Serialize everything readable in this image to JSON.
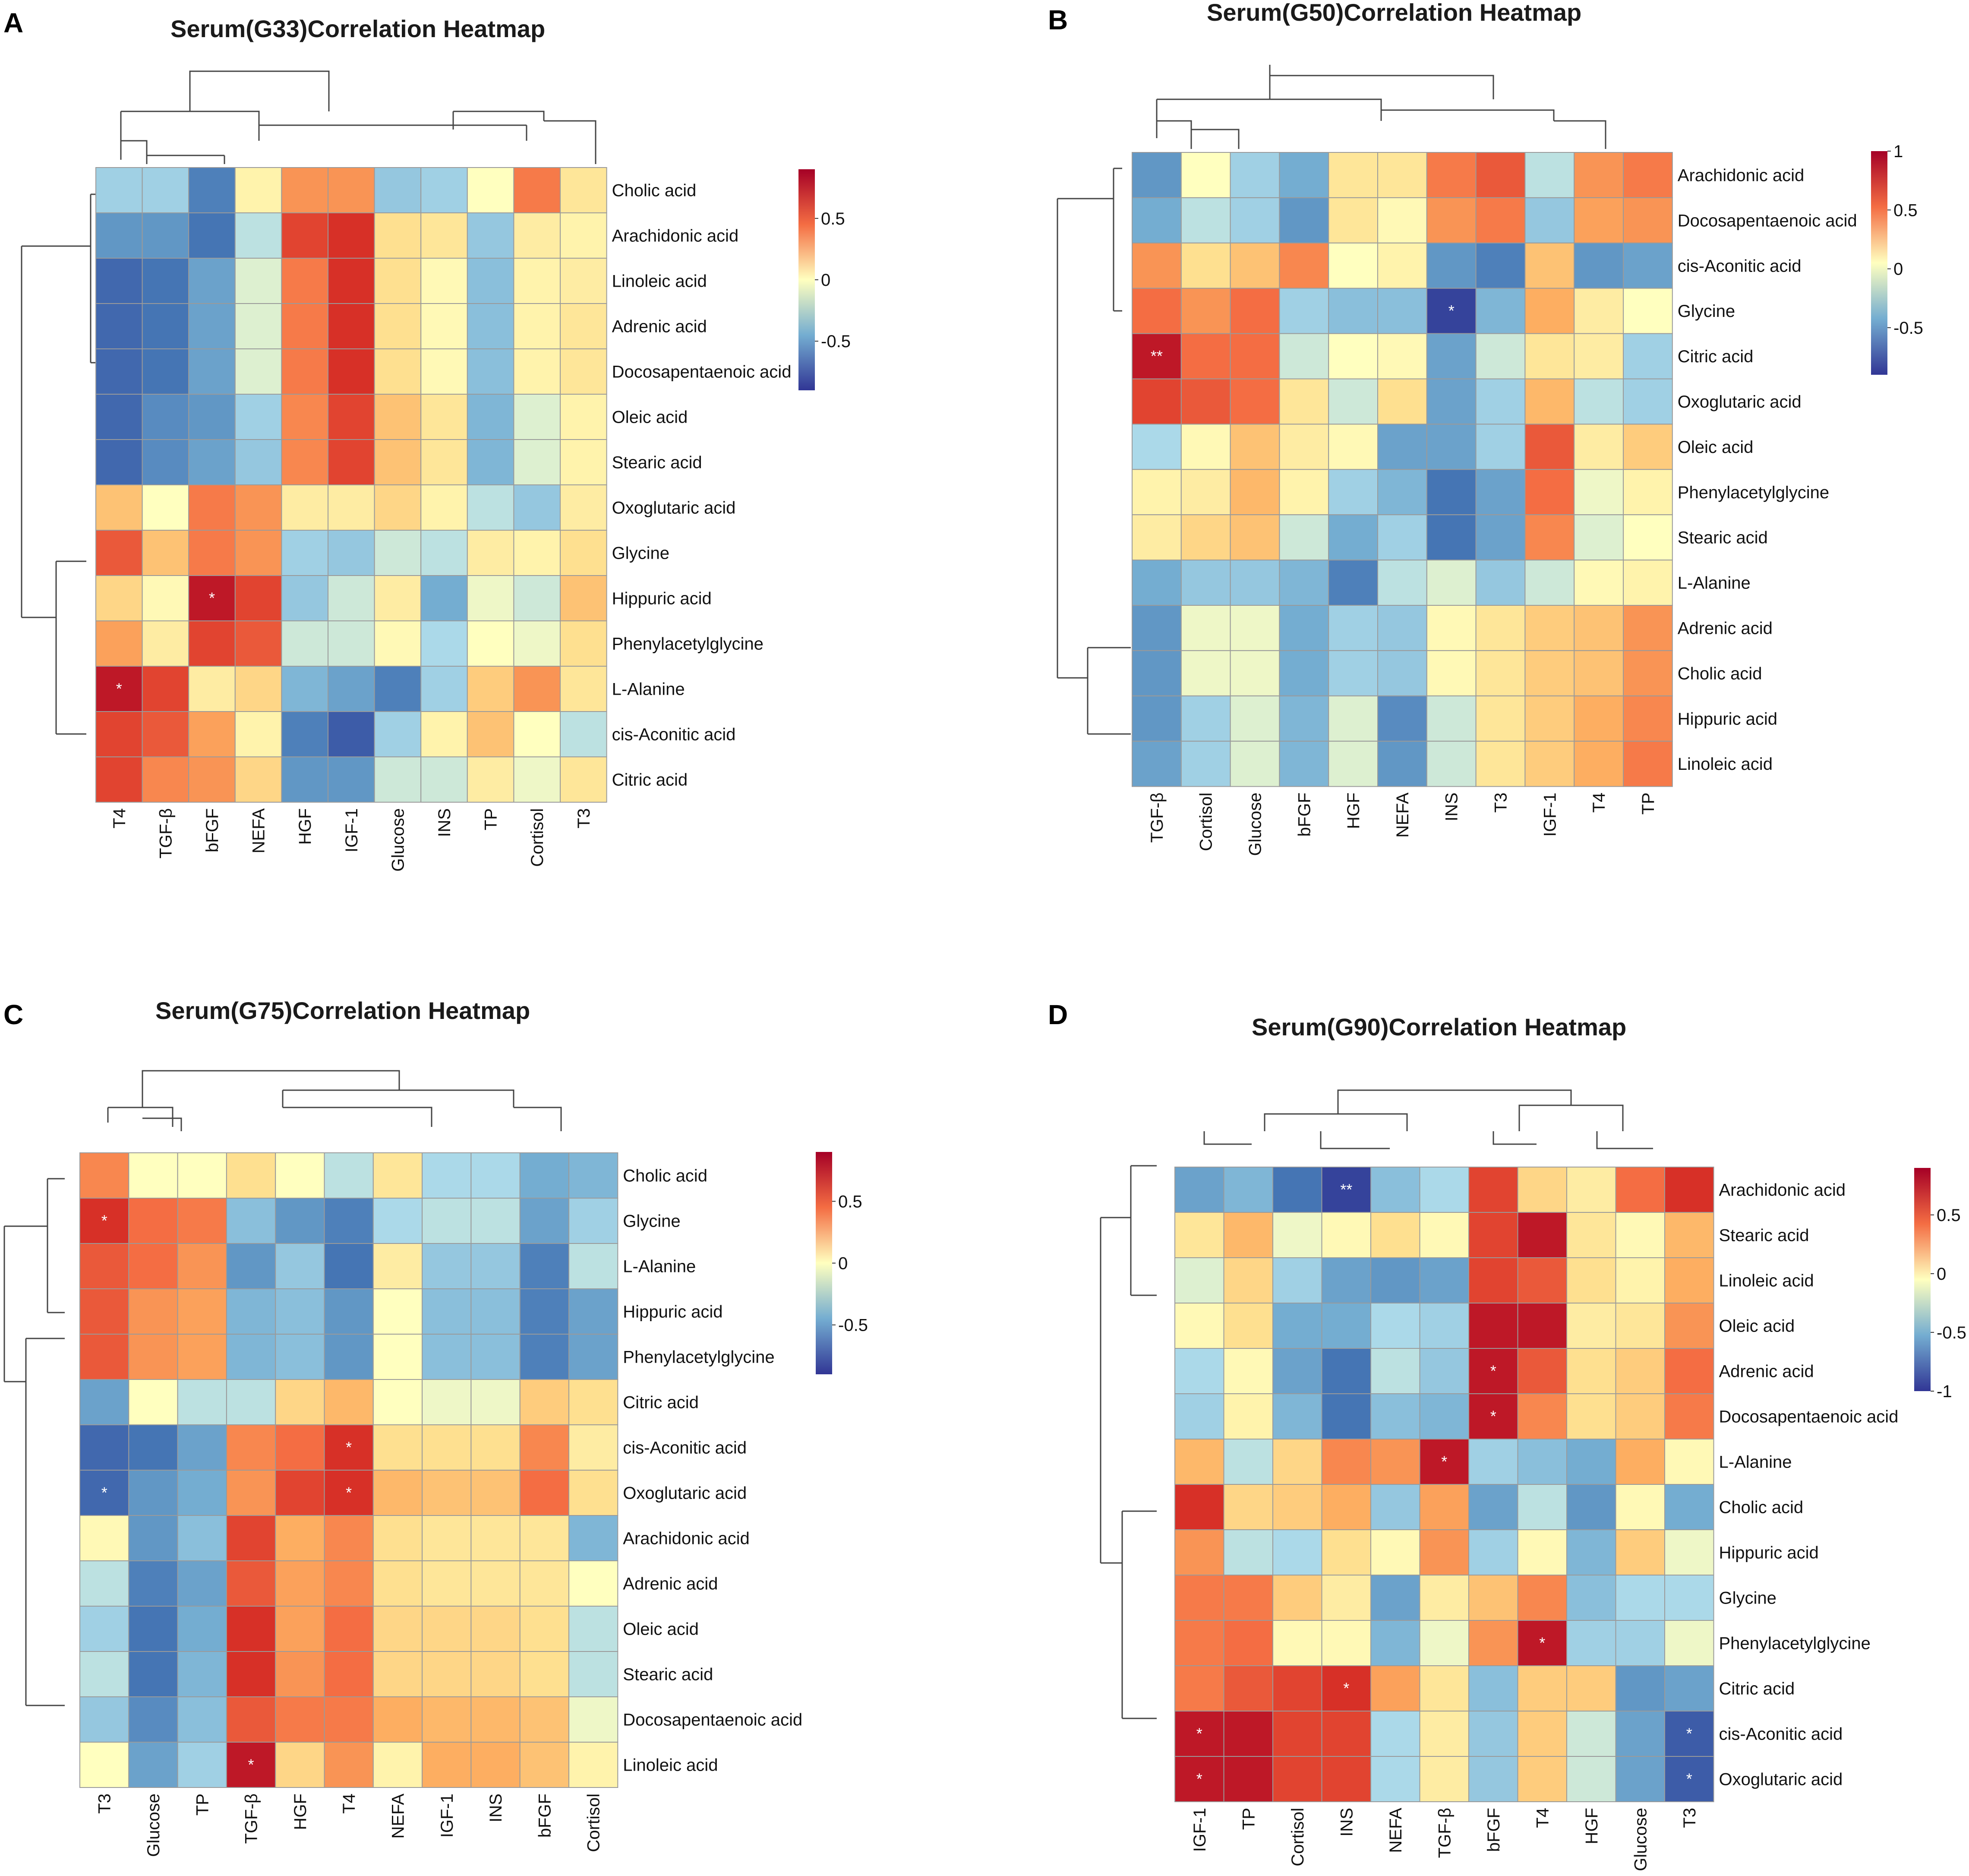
{
  "chart_data": [
    {
      "type": "heatmap",
      "panel": "A",
      "title": "Serum(G33)Correlation Heatmap",
      "rows": [
        "Cholic acid",
        "Arachidonic acid",
        "Linoleic acid",
        "Adrenic acid",
        "Docosapentaenoic acid",
        "Oleic acid",
        "Stearic acid",
        "Oxoglutaric acid",
        "Glycine",
        "Hippuric acid",
        "Phenylacetylglycine",
        "L-Alanine",
        "cis-Aconitic acid",
        "Citric acid"
      ],
      "columns": [
        "T4",
        "TGF-β",
        "bFGF",
        "NEFA",
        "HGF",
        "IGF-1",
        "Glucose",
        "INS",
        "TP",
        "Cortisol",
        "T3"
      ],
      "values": [
        [
          -0.3,
          -0.3,
          -0.7,
          0.1,
          0.6,
          0.6,
          -0.35,
          -0.3,
          0.0,
          0.7,
          0.2
        ],
        [
          -0.6,
          -0.6,
          -0.75,
          -0.2,
          0.85,
          0.9,
          0.25,
          0.2,
          -0.35,
          0.15,
          0.1
        ],
        [
          -0.8,
          -0.75,
          -0.55,
          -0.1,
          0.7,
          0.9,
          0.25,
          0.05,
          -0.4,
          0.1,
          0.15
        ],
        [
          -0.8,
          -0.75,
          -0.55,
          -0.1,
          0.7,
          0.9,
          0.25,
          0.05,
          -0.4,
          0.1,
          0.2
        ],
        [
          -0.8,
          -0.75,
          -0.55,
          -0.1,
          0.7,
          0.9,
          0.25,
          0.05,
          -0.4,
          0.1,
          0.2
        ],
        [
          -0.8,
          -0.65,
          -0.6,
          -0.3,
          0.65,
          0.85,
          0.4,
          0.2,
          -0.45,
          -0.1,
          0.1
        ],
        [
          -0.8,
          -0.65,
          -0.55,
          -0.35,
          0.65,
          0.85,
          0.4,
          0.2,
          -0.45,
          -0.1,
          0.1
        ],
        [
          0.4,
          0.0,
          0.7,
          0.6,
          0.15,
          0.15,
          0.3,
          0.1,
          -0.2,
          -0.35,
          0.15
        ],
        [
          0.8,
          0.4,
          0.7,
          0.6,
          -0.3,
          -0.35,
          -0.15,
          -0.2,
          0.15,
          0.1,
          0.25
        ],
        [
          0.3,
          0.05,
          0.95,
          0.85,
          -0.35,
          -0.15,
          0.15,
          -0.5,
          -0.05,
          -0.15,
          0.4
        ],
        [
          0.55,
          0.15,
          0.85,
          0.8,
          -0.15,
          -0.15,
          0.05,
          -0.25,
          0.0,
          -0.05,
          0.25
        ],
        [
          0.95,
          0.85,
          0.15,
          0.3,
          -0.45,
          -0.55,
          -0.7,
          -0.3,
          0.35,
          0.6,
          0.2
        ],
        [
          0.85,
          0.8,
          0.55,
          0.1,
          -0.7,
          -0.85,
          -0.3,
          0.1,
          0.4,
          0.0,
          -0.2
        ],
        [
          0.85,
          0.65,
          0.6,
          0.3,
          -0.6,
          -0.6,
          -0.15,
          -0.15,
          0.15,
          -0.05,
          0.2
        ]
      ],
      "significance": [
        {
          "row": "Hippuric acid",
          "column": "bFGF",
          "label": "*"
        },
        {
          "row": "L-Alanine",
          "column": "T4",
          "label": "*"
        }
      ],
      "legend_ticks": [
        "0.5",
        "0",
        "-0.5"
      ],
      "legend_values": [
        0.5,
        0,
        -0.5
      ],
      "legend_range": [
        -0.9,
        0.9
      ]
    },
    {
      "type": "heatmap",
      "panel": "B",
      "title": "Serum(G50)Correlation Heatmap",
      "rows": [
        "Arachidonic acid",
        "Docosapentaenoic acid",
        "cis-Aconitic acid",
        "Glycine",
        "Citric acid",
        "Oxoglutaric acid",
        "Oleic acid",
        "Phenylacetylglycine",
        "Stearic acid",
        "L-Alanine",
        "Adrenic acid",
        "Cholic acid",
        "Hippuric acid",
        "Linoleic acid"
      ],
      "columns": [
        "TGF-β",
        "Cortisol",
        "Glucose",
        "bFGF",
        "HGF",
        "NEFA",
        "INS",
        "T3",
        "IGF-1",
        "T4",
        "TP"
      ],
      "values": [
        [
          -0.6,
          0.0,
          -0.3,
          -0.5,
          0.2,
          0.2,
          0.7,
          0.8,
          -0.2,
          0.6,
          0.7
        ],
        [
          -0.5,
          -0.2,
          -0.3,
          -0.6,
          0.2,
          0.05,
          0.6,
          0.7,
          -0.35,
          0.55,
          0.6
        ],
        [
          0.6,
          0.25,
          0.4,
          0.65,
          0.0,
          0.1,
          -0.6,
          -0.7,
          0.4,
          -0.6,
          -0.55
        ],
        [
          0.75,
          0.6,
          0.75,
          -0.3,
          -0.4,
          -0.4,
          -0.95,
          -0.45,
          0.5,
          0.15,
          0.0
        ],
        [
          0.95,
          0.75,
          0.75,
          -0.15,
          0.0,
          0.05,
          -0.55,
          -0.15,
          0.2,
          0.15,
          -0.3
        ],
        [
          0.85,
          0.8,
          0.75,
          0.2,
          -0.15,
          0.25,
          -0.55,
          -0.3,
          0.45,
          -0.2,
          -0.3
        ],
        [
          -0.25,
          0.05,
          0.4,
          0.15,
          0.05,
          -0.55,
          -0.55,
          -0.3,
          0.8,
          0.15,
          0.35
        ],
        [
          0.1,
          0.15,
          0.45,
          0.1,
          -0.3,
          -0.45,
          -0.75,
          -0.55,
          0.75,
          -0.05,
          0.1
        ],
        [
          0.15,
          0.3,
          0.4,
          -0.15,
          -0.5,
          -0.3,
          -0.75,
          -0.55,
          0.65,
          -0.1,
          0.0
        ],
        [
          -0.5,
          -0.35,
          -0.35,
          -0.45,
          -0.7,
          -0.2,
          -0.1,
          -0.35,
          -0.15,
          0.05,
          0.1
        ],
        [
          -0.6,
          -0.05,
          -0.05,
          -0.5,
          -0.3,
          -0.35,
          0.05,
          0.2,
          0.35,
          0.4,
          0.6
        ],
        [
          -0.6,
          -0.05,
          -0.05,
          -0.5,
          -0.3,
          -0.35,
          0.05,
          0.2,
          0.35,
          0.4,
          0.6
        ],
        [
          -0.6,
          -0.3,
          -0.1,
          -0.45,
          -0.1,
          -0.65,
          -0.15,
          0.2,
          0.35,
          0.5,
          0.65
        ],
        [
          -0.55,
          -0.3,
          -0.1,
          -0.45,
          -0.1,
          -0.6,
          -0.15,
          0.2,
          0.35,
          0.5,
          0.7
        ]
      ],
      "significance": [
        {
          "row": "Glycine",
          "column": "INS",
          "label": "*"
        },
        {
          "row": "Citric acid",
          "column": "TGF-β",
          "label": "**"
        }
      ],
      "legend_ticks": [
        "1",
        "0.5",
        "0",
        "-0.5"
      ],
      "legend_values": [
        1,
        0.5,
        0,
        -0.5
      ],
      "legend_range": [
        -0.9,
        1.0
      ]
    },
    {
      "type": "heatmap",
      "panel": "C",
      "title": "Serum(G75)Correlation Heatmap",
      "rows": [
        "Cholic acid",
        "Glycine",
        "L-Alanine",
        "Hippuric acid",
        "Phenylacetylglycine",
        "Citric acid",
        "cis-Aconitic acid",
        "Oxoglutaric acid",
        "Arachidonic acid",
        "Adrenic acid",
        "Oleic acid",
        "Stearic acid",
        "Docosapentaenoic acid",
        "Linoleic acid"
      ],
      "columns": [
        "T3",
        "Glucose",
        "TP",
        "TGF-β",
        "HGF",
        "T4",
        "NEFA",
        "IGF-1",
        "INS",
        "bFGF",
        "Cortisol"
      ],
      "values": [
        [
          0.65,
          0.0,
          0.0,
          0.25,
          0.0,
          -0.2,
          0.2,
          -0.25,
          -0.25,
          -0.5,
          -0.45
        ],
        [
          0.9,
          0.75,
          0.7,
          -0.4,
          -0.6,
          -0.7,
          -0.25,
          -0.2,
          -0.2,
          -0.55,
          -0.3
        ],
        [
          0.8,
          0.75,
          0.6,
          -0.6,
          -0.35,
          -0.75,
          0.15,
          -0.35,
          -0.35,
          -0.7,
          -0.2
        ],
        [
          0.8,
          0.6,
          0.55,
          -0.45,
          -0.4,
          -0.6,
          0.0,
          -0.4,
          -0.4,
          -0.7,
          -0.55
        ],
        [
          0.8,
          0.6,
          0.55,
          -0.45,
          -0.4,
          -0.6,
          0.0,
          -0.4,
          -0.4,
          -0.7,
          -0.55
        ],
        [
          -0.55,
          0.0,
          -0.2,
          -0.2,
          0.3,
          0.45,
          0.0,
          -0.05,
          -0.05,
          0.35,
          0.25
        ],
        [
          -0.8,
          -0.75,
          -0.55,
          0.65,
          0.75,
          0.9,
          0.25,
          0.25,
          0.25,
          0.65,
          0.15
        ],
        [
          -0.8,
          -0.6,
          -0.5,
          0.6,
          0.85,
          0.9,
          0.45,
          0.4,
          0.4,
          0.75,
          0.25
        ],
        [
          0.05,
          -0.6,
          -0.4,
          0.85,
          0.5,
          0.65,
          0.25,
          0.2,
          0.2,
          0.2,
          -0.45
        ],
        [
          -0.2,
          -0.7,
          -0.55,
          0.8,
          0.55,
          0.65,
          0.25,
          0.2,
          0.2,
          0.2,
          0.0
        ],
        [
          -0.3,
          -0.75,
          -0.5,
          0.9,
          0.55,
          0.75,
          0.3,
          0.3,
          0.3,
          0.25,
          -0.2
        ],
        [
          -0.2,
          -0.75,
          -0.45,
          0.9,
          0.6,
          0.75,
          0.3,
          0.3,
          0.3,
          0.25,
          -0.2
        ],
        [
          -0.35,
          -0.65,
          -0.4,
          0.8,
          0.7,
          0.7,
          0.5,
          0.45,
          0.45,
          0.4,
          -0.05
        ],
        [
          0.0,
          -0.55,
          -0.3,
          0.95,
          0.3,
          0.6,
          0.1,
          0.5,
          0.5,
          0.4,
          0.1
        ]
      ],
      "significance": [
        {
          "row": "Glycine",
          "column": "T3",
          "label": "*"
        },
        {
          "row": "cis-Aconitic acid",
          "column": "T4",
          "label": "*"
        },
        {
          "row": "Oxoglutaric acid",
          "column": "T3",
          "label": "*"
        },
        {
          "row": "Oxoglutaric acid",
          "column": "T4",
          "label": "*"
        },
        {
          "row": "Linoleic acid",
          "column": "TGF-β",
          "label": "*"
        }
      ],
      "legend_ticks": [
        "0.5",
        "0",
        "-0.5"
      ],
      "legend_values": [
        0.5,
        0,
        -0.5
      ],
      "legend_range": [
        -0.9,
        0.9
      ]
    },
    {
      "type": "heatmap",
      "panel": "D",
      "title": "Serum(G90)Correlation Heatmap",
      "rows": [
        "Arachidonic acid",
        "Stearic acid",
        "Linoleic acid",
        "Oleic acid",
        "Adrenic acid",
        "Docosapentaenoic acid",
        "L-Alanine",
        "Cholic acid",
        "Hippuric acid",
        "Glycine",
        "Phenylacetylglycine",
        "Citric acid",
        "cis-Aconitic acid",
        "Oxoglutaric acid"
      ],
      "columns": [
        "IGF-1",
        "TP",
        "Cortisol",
        "INS",
        "NEFA",
        "TGF-β",
        "bFGF",
        "T4",
        "HGF",
        "Glucose",
        "T3"
      ],
      "values": [
        [
          -0.55,
          -0.45,
          -0.75,
          -0.95,
          -0.4,
          -0.25,
          0.85,
          0.3,
          0.15,
          0.75,
          0.9
        ],
        [
          0.2,
          0.45,
          -0.05,
          0.05,
          0.25,
          0.05,
          0.85,
          0.95,
          0.2,
          0.05,
          0.45
        ],
        [
          -0.1,
          0.3,
          -0.3,
          -0.55,
          -0.6,
          -0.55,
          0.85,
          0.8,
          0.25,
          0.1,
          0.5
        ],
        [
          0.05,
          0.25,
          -0.5,
          -0.5,
          -0.25,
          -0.3,
          0.95,
          0.95,
          0.15,
          0.2,
          0.6
        ],
        [
          -0.25,
          0.05,
          -0.55,
          -0.75,
          -0.2,
          -0.35,
          0.95,
          0.8,
          0.25,
          0.35,
          0.75
        ],
        [
          -0.3,
          0.1,
          -0.45,
          -0.75,
          -0.4,
          -0.45,
          0.95,
          0.65,
          0.25,
          0.35,
          0.7
        ],
        [
          0.45,
          -0.2,
          0.3,
          0.65,
          0.6,
          0.95,
          -0.3,
          -0.4,
          -0.5,
          0.5,
          0.05
        ],
        [
          0.9,
          0.3,
          0.35,
          0.5,
          -0.35,
          0.55,
          -0.55,
          -0.2,
          -0.6,
          0.05,
          -0.5
        ],
        [
          0.6,
          -0.2,
          -0.25,
          0.25,
          0.05,
          0.6,
          -0.3,
          0.05,
          -0.45,
          0.35,
          -0.05
        ],
        [
          0.7,
          0.7,
          0.35,
          0.15,
          -0.55,
          0.15,
          0.4,
          0.65,
          -0.4,
          -0.25,
          -0.25
        ],
        [
          0.7,
          0.75,
          0.05,
          0.05,
          -0.45,
          -0.05,
          0.6,
          0.95,
          -0.3,
          -0.3,
          -0.05
        ],
        [
          0.7,
          0.8,
          0.85,
          0.9,
          0.55,
          0.2,
          -0.4,
          0.35,
          0.35,
          -0.6,
          -0.55
        ],
        [
          0.95,
          0.95,
          0.85,
          0.85,
          -0.25,
          0.15,
          -0.35,
          0.35,
          -0.15,
          -0.55,
          -0.85
        ],
        [
          0.95,
          0.95,
          0.85,
          0.85,
          -0.25,
          0.15,
          -0.35,
          0.35,
          -0.15,
          -0.55,
          -0.85
        ]
      ],
      "significance": [
        {
          "row": "Arachidonic acid",
          "column": "INS",
          "label": "**"
        },
        {
          "row": "Adrenic acid",
          "column": "bFGF",
          "label": "*"
        },
        {
          "row": "Docosapentaenoic acid",
          "column": "bFGF",
          "label": "*"
        },
        {
          "row": "L-Alanine",
          "column": "TGF-β",
          "label": "*"
        },
        {
          "row": "Phenylacetylglycine",
          "column": "T4",
          "label": "*"
        },
        {
          "row": "Citric acid",
          "column": "INS",
          "label": "*"
        },
        {
          "row": "cis-Aconitic acid",
          "column": "IGF-1",
          "label": "*"
        },
        {
          "row": "cis-Aconitic acid",
          "column": "T3",
          "label": "*"
        },
        {
          "row": "Oxoglutaric acid",
          "column": "IGF-1",
          "label": "*"
        },
        {
          "row": "Oxoglutaric acid",
          "column": "T3",
          "label": "*"
        }
      ],
      "legend_ticks": [
        "0.5",
        "0",
        "-0.5",
        "-1"
      ],
      "legend_values": [
        0.5,
        0,
        -0.5,
        -1
      ],
      "legend_range": [
        -1.0,
        0.9
      ]
    }
  ]
}
